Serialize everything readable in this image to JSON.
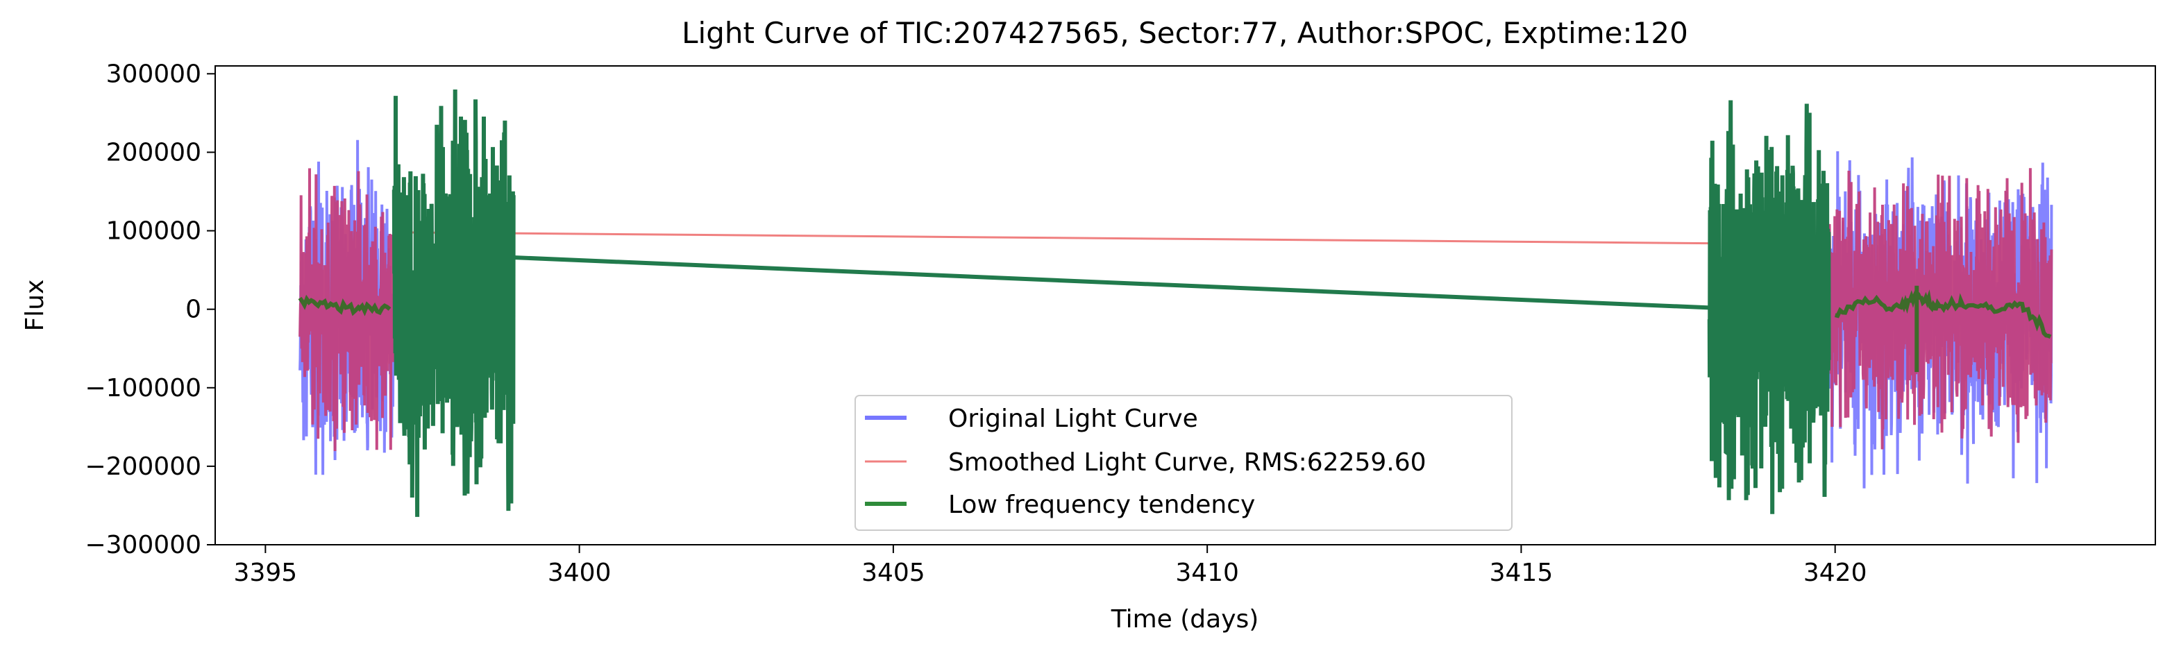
{
  "chart_data": {
    "type": "line",
    "title": "Light Curve of TIC:207427565, Sector:77, Author:SPOC, Exptime:120",
    "xlabel": "Time (days)",
    "ylabel": "Flux",
    "xlim": [
      3394.2,
      3425.1
    ],
    "ylim": [
      -300000,
      310000
    ],
    "xticks": [
      3395,
      3400,
      3405,
      3410,
      3415,
      3420
    ],
    "xtick_labels": [
      "3395",
      "3400",
      "3405",
      "3410",
      "3415",
      "3420"
    ],
    "yticks": [
      -300000,
      -200000,
      -100000,
      0,
      100000,
      200000,
      300000
    ],
    "ytick_labels": [
      "−300000",
      "−200000",
      "−100000",
      "0",
      "100000",
      "200000",
      "300000"
    ],
    "grid": false,
    "legend_position": "bottom-center",
    "series": [
      {
        "name": "Original Light Curve",
        "color": "#7777ff",
        "segments": [
          [
            3395.55,
            3397.05
          ],
          [
            3419.9,
            3423.45
          ]
        ],
        "approx_range": [
          -210000,
          195000
        ]
      },
      {
        "name": "Smoothed Light Curve, RMS:62259.60",
        "color": "#f08080",
        "segments": [
          [
            3395.55,
            3397.05
          ],
          [
            3419.9,
            3423.45
          ]
        ],
        "connector": [
          [
            3397.05,
            98000
          ],
          [
            3418.0,
            84000
          ]
        ],
        "fill_color": "#c2407e"
      },
      {
        "name": "Low frequency tendency",
        "color": "#217a4c",
        "dense_segments": [
          [
            3397.05,
            3398.95
          ],
          [
            3418.0,
            3419.9
          ]
        ],
        "approx_range": [
          -275000,
          275000
        ],
        "connector": [
          [
            3398.95,
            66000
          ],
          [
            3418.0,
            2000
          ]
        ],
        "baseline_points": [
          [
            3395.55,
            12000
          ],
          [
            3396.0,
            4000
          ],
          [
            3396.5,
            0
          ],
          [
            3397.0,
            3000
          ],
          [
            3420.0,
            -5000
          ],
          [
            3420.5,
            12000
          ],
          [
            3421.0,
            2000
          ],
          [
            3421.3,
            20000
          ],
          [
            3421.6,
            3000
          ],
          [
            3422.0,
            8000
          ],
          [
            3422.5,
            0
          ],
          [
            3423.0,
            5000
          ],
          [
            3423.45,
            -35000
          ]
        ]
      }
    ]
  }
}
